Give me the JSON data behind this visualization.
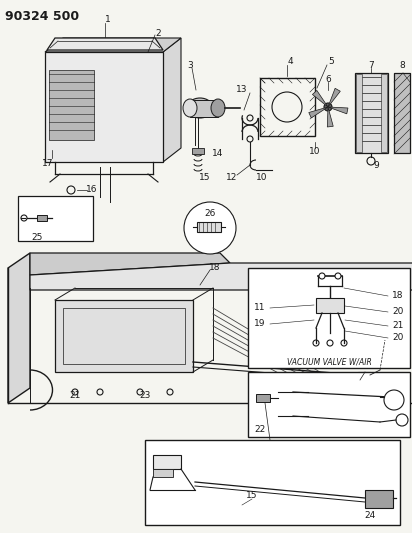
{
  "title": "90324 500",
  "bg_color": "#f5f5f0",
  "line_color": "#1a1a1a",
  "gray_light": "#c8c8c8",
  "gray_mid": "#a0a0a0",
  "gray_dark": "#606060",
  "title_fontsize": 9,
  "annotation_fontsize": 6.5,
  "vacuum_valve_label": "VACUUM VALVE W/AIR",
  "fig_width": 4.12,
  "fig_height": 5.33,
  "dpi": 100
}
